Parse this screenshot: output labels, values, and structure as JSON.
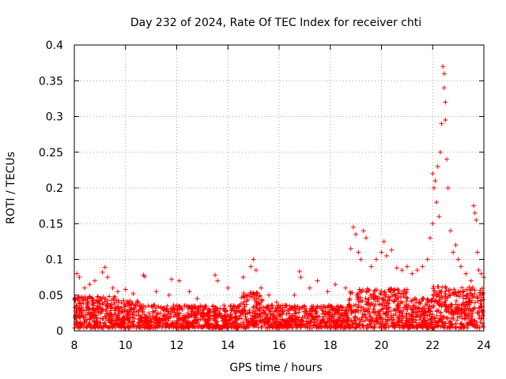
{
  "chart_data": {
    "type": "scatter",
    "title": "Day 232 of 2024, Rate Of TEC Index for receiver chti",
    "xlabel": "GPS time / hours",
    "ylabel": "ROTI / TECUs",
    "xlim": [
      8,
      24
    ],
    "ylim": [
      0,
      0.4
    ],
    "x_ticks": [
      8,
      10,
      12,
      14,
      16,
      18,
      20,
      22,
      24
    ],
    "x_tick_labels": [
      "8",
      "10",
      "12",
      "14",
      "16",
      "18",
      "20",
      "22",
      "24"
    ],
    "y_ticks": [
      0,
      0.05,
      0.1,
      0.15,
      0.2,
      0.25,
      0.3,
      0.35,
      0.4
    ],
    "y_tick_labels": [
      "0",
      "0.05",
      "0.1",
      "0.15",
      "0.2",
      "0.25",
      "0.3",
      "0.35",
      "0.4"
    ],
    "grid": true,
    "marker": "+",
    "marker_color": "#ff0000",
    "series": [
      {
        "name": "ROTI",
        "points": [
          [
            8.1,
            0.08
          ],
          [
            8.2,
            0.075
          ],
          [
            8.4,
            0.06
          ],
          [
            8.6,
            0.065
          ],
          [
            8.8,
            0.07
          ],
          [
            9.1,
            0.082
          ],
          [
            9.2,
            0.089
          ],
          [
            9.3,
            0.075
          ],
          [
            9.5,
            0.06
          ],
          [
            9.7,
            0.055
          ],
          [
            10.0,
            0.058
          ],
          [
            10.3,
            0.052
          ],
          [
            10.7,
            0.078
          ],
          [
            10.75,
            0.076
          ],
          [
            11.2,
            0.055
          ],
          [
            11.7,
            0.05
          ],
          [
            11.8,
            0.072
          ],
          [
            12.1,
            0.07
          ],
          [
            12.5,
            0.055
          ],
          [
            12.8,
            0.045
          ],
          [
            13.5,
            0.078
          ],
          [
            13.6,
            0.07
          ],
          [
            14.0,
            0.06
          ],
          [
            14.6,
            0.075
          ],
          [
            14.9,
            0.09
          ],
          [
            15.0,
            0.1
          ],
          [
            15.1,
            0.085
          ],
          [
            15.3,
            0.06
          ],
          [
            15.6,
            0.05
          ],
          [
            15.9,
            0.04
          ],
          [
            16.3,
            0.035
          ],
          [
            16.6,
            0.05
          ],
          [
            16.8,
            0.083
          ],
          [
            16.85,
            0.075
          ],
          [
            17.2,
            0.06
          ],
          [
            17.5,
            0.07
          ],
          [
            17.9,
            0.055
          ],
          [
            18.2,
            0.065
          ],
          [
            18.6,
            0.06
          ],
          [
            18.8,
            0.115
          ],
          [
            18.9,
            0.145
          ],
          [
            19.0,
            0.135
          ],
          [
            19.1,
            0.11
          ],
          [
            19.2,
            0.1
          ],
          [
            19.3,
            0.14
          ],
          [
            19.4,
            0.13
          ],
          [
            19.6,
            0.09
          ],
          [
            19.8,
            0.1
          ],
          [
            20.0,
            0.11
          ],
          [
            20.1,
            0.125
          ],
          [
            20.2,
            0.105
          ],
          [
            20.4,
            0.113
          ],
          [
            20.6,
            0.088
          ],
          [
            20.8,
            0.085
          ],
          [
            21.0,
            0.09
          ],
          [
            21.2,
            0.08
          ],
          [
            21.4,
            0.085
          ],
          [
            21.6,
            0.09
          ],
          [
            21.8,
            0.1
          ],
          [
            21.9,
            0.13
          ],
          [
            22.0,
            0.15
          ],
          [
            22.0,
            0.22
          ],
          [
            22.05,
            0.2
          ],
          [
            22.1,
            0.21
          ],
          [
            22.15,
            0.18
          ],
          [
            22.2,
            0.23
          ],
          [
            22.25,
            0.16
          ],
          [
            22.3,
            0.25
          ],
          [
            22.35,
            0.29
          ],
          [
            22.4,
            0.37
          ],
          [
            22.45,
            0.36
          ],
          [
            22.45,
            0.34
          ],
          [
            22.5,
            0.295
          ],
          [
            22.5,
            0.32
          ],
          [
            22.55,
            0.24
          ],
          [
            22.6,
            0.2
          ],
          [
            22.7,
            0.14
          ],
          [
            22.8,
            0.11
          ],
          [
            22.9,
            0.12
          ],
          [
            23.0,
            0.1
          ],
          [
            23.1,
            0.09
          ],
          [
            23.3,
            0.08
          ],
          [
            23.5,
            0.07
          ],
          [
            23.6,
            0.175
          ],
          [
            23.65,
            0.165
          ],
          [
            23.7,
            0.155
          ],
          [
            23.75,
            0.11
          ],
          [
            23.8,
            0.085
          ],
          [
            23.9,
            0.08
          ],
          [
            24.0,
            0.075
          ]
        ]
      }
    ]
  }
}
